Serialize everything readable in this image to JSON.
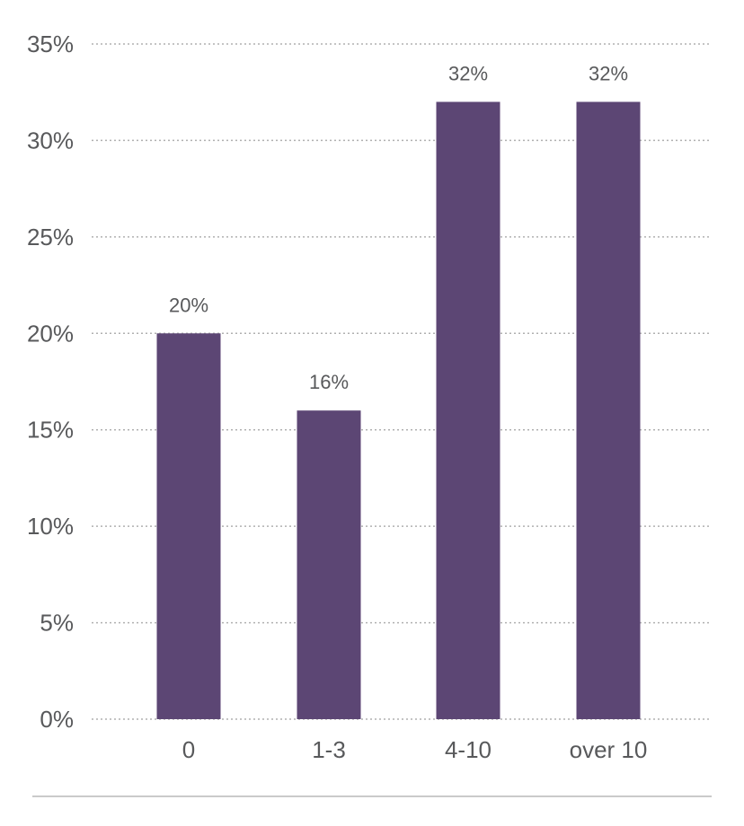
{
  "chart_data": {
    "type": "bar",
    "categories": [
      "0",
      "1-3",
      "4-10",
      "over 10"
    ],
    "values": [
      20,
      16,
      32,
      32
    ],
    "value_labels": [
      "20%",
      "16%",
      "32%",
      "32%"
    ],
    "ylim": [
      0,
      35
    ],
    "yticks": [
      0,
      5,
      10,
      15,
      20,
      25,
      30,
      35
    ],
    "ytick_labels": [
      "0%",
      "5%",
      "10%",
      "15%",
      "20%",
      "25%",
      "30%",
      "35%"
    ],
    "grid": true,
    "bar_color": "#5c4674",
    "grid_color": "#b0b0b0",
    "text_color": "#58595b"
  }
}
